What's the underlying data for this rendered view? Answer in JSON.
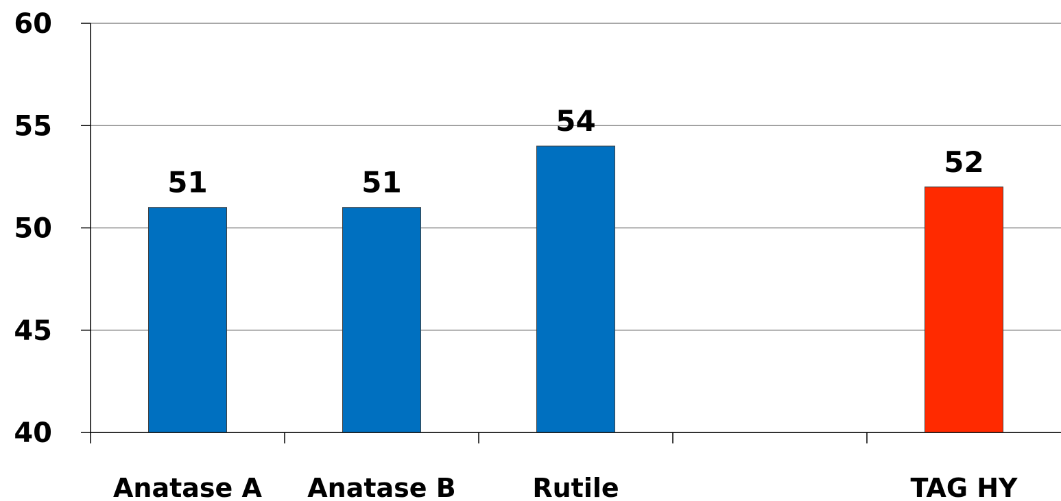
{
  "chart_data": {
    "type": "bar",
    "categories": [
      "Anatase A",
      "Anatase B",
      "Rutile",
      "",
      "TAG HY"
    ],
    "values": [
      51,
      51,
      54,
      null,
      52
    ],
    "data_labels": [
      "51",
      "51",
      "54",
      "",
      "52"
    ],
    "bar_colors": [
      "#0070c0",
      "#0070c0",
      "#0070c0",
      "",
      "#ff2a00"
    ],
    "title": "",
    "xlabel": "",
    "ylabel": "",
    "ylim": [
      40,
      60
    ],
    "yticks": [
      40,
      45,
      50,
      55,
      60
    ],
    "ytick_labels": [
      "40",
      "45",
      "50",
      "55",
      "60"
    ],
    "grid": true,
    "legend": "none"
  }
}
